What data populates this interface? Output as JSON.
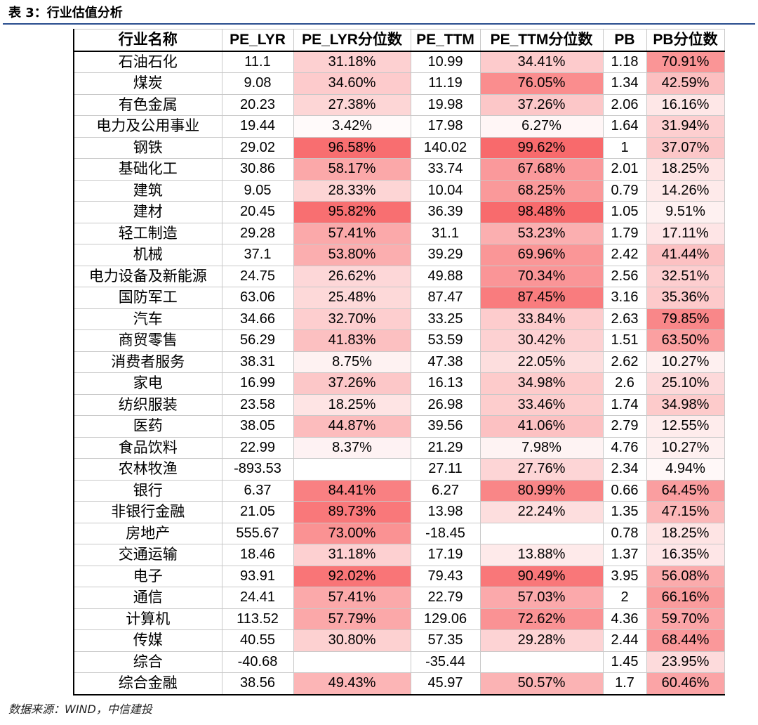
{
  "caption": "表 3：行业估值分析",
  "source": "数据来源：WIND，中信建投",
  "colors": {
    "heat_max": "#f8696b",
    "heat_min": "#ffffff",
    "rule": "#2a4e8f"
  },
  "headers": [
    "行业名称",
    "PE_LYR",
    "PE_LYR分位数",
    "PE_TTM",
    "PE_TTM分位数",
    "PB",
    "PB分位数"
  ],
  "rows": [
    {
      "name": "石油石化",
      "pe_lyr": "11.1",
      "pe_lyr_pct": "31.18%",
      "pe_ttm": "10.99",
      "pe_ttm_pct": "34.41%",
      "pb": "1.18",
      "pb_pct": "70.91%"
    },
    {
      "name": "煤炭",
      "pe_lyr": "9.08",
      "pe_lyr_pct": "34.60%",
      "pe_ttm": "11.19",
      "pe_ttm_pct": "76.05%",
      "pb": "1.34",
      "pb_pct": "42.59%"
    },
    {
      "name": "有色金属",
      "pe_lyr": "20.23",
      "pe_lyr_pct": "27.38%",
      "pe_ttm": "19.98",
      "pe_ttm_pct": "37.26%",
      "pb": "2.06",
      "pb_pct": "16.16%"
    },
    {
      "name": "电力及公用事业",
      "pe_lyr": "19.44",
      "pe_lyr_pct": "3.42%",
      "pe_ttm": "17.98",
      "pe_ttm_pct": "6.27%",
      "pb": "1.64",
      "pb_pct": "31.94%"
    },
    {
      "name": "钢铁",
      "pe_lyr": "29.02",
      "pe_lyr_pct": "96.58%",
      "pe_ttm": "140.02",
      "pe_ttm_pct": "99.62%",
      "pb": "1",
      "pb_pct": "37.07%"
    },
    {
      "name": "基础化工",
      "pe_lyr": "30.86",
      "pe_lyr_pct": "58.17%",
      "pe_ttm": "33.74",
      "pe_ttm_pct": "67.68%",
      "pb": "2.01",
      "pb_pct": "18.25%"
    },
    {
      "name": "建筑",
      "pe_lyr": "9.05",
      "pe_lyr_pct": "28.33%",
      "pe_ttm": "10.04",
      "pe_ttm_pct": "68.25%",
      "pb": "0.79",
      "pb_pct": "14.26%"
    },
    {
      "name": "建材",
      "pe_lyr": "20.45",
      "pe_lyr_pct": "95.82%",
      "pe_ttm": "36.39",
      "pe_ttm_pct": "98.48%",
      "pb": "1.05",
      "pb_pct": "9.51%"
    },
    {
      "name": "轻工制造",
      "pe_lyr": "29.28",
      "pe_lyr_pct": "57.41%",
      "pe_ttm": "31.1",
      "pe_ttm_pct": "53.23%",
      "pb": "1.79",
      "pb_pct": "17.11%"
    },
    {
      "name": "机械",
      "pe_lyr": "37.1",
      "pe_lyr_pct": "53.80%",
      "pe_ttm": "39.29",
      "pe_ttm_pct": "69.96%",
      "pb": "2.42",
      "pb_pct": "41.44%"
    },
    {
      "name": "电力设备及新能源",
      "pe_lyr": "24.75",
      "pe_lyr_pct": "26.62%",
      "pe_ttm": "49.88",
      "pe_ttm_pct": "70.34%",
      "pb": "2.56",
      "pb_pct": "32.51%"
    },
    {
      "name": "国防军工",
      "pe_lyr": "63.06",
      "pe_lyr_pct": "25.48%",
      "pe_ttm": "87.47",
      "pe_ttm_pct": "87.45%",
      "pb": "3.16",
      "pb_pct": "35.36%"
    },
    {
      "name": "汽车",
      "pe_lyr": "34.66",
      "pe_lyr_pct": "32.70%",
      "pe_ttm": "33.25",
      "pe_ttm_pct": "33.84%",
      "pb": "2.63",
      "pb_pct": "79.85%"
    },
    {
      "name": "商贸零售",
      "pe_lyr": "56.29",
      "pe_lyr_pct": "41.83%",
      "pe_ttm": "53.59",
      "pe_ttm_pct": "30.42%",
      "pb": "1.51",
      "pb_pct": "63.50%"
    },
    {
      "name": "消费者服务",
      "pe_lyr": "38.31",
      "pe_lyr_pct": "8.75%",
      "pe_ttm": "47.38",
      "pe_ttm_pct": "22.05%",
      "pb": "2.62",
      "pb_pct": "10.27%"
    },
    {
      "name": "家电",
      "pe_lyr": "16.99",
      "pe_lyr_pct": "37.26%",
      "pe_ttm": "16.13",
      "pe_ttm_pct": "34.98%",
      "pb": "2.6",
      "pb_pct": "25.10%"
    },
    {
      "name": "纺织服装",
      "pe_lyr": "23.58",
      "pe_lyr_pct": "18.25%",
      "pe_ttm": "26.98",
      "pe_ttm_pct": "33.46%",
      "pb": "1.74",
      "pb_pct": "34.98%"
    },
    {
      "name": "医药",
      "pe_lyr": "38.05",
      "pe_lyr_pct": "44.87%",
      "pe_ttm": "39.56",
      "pe_ttm_pct": "41.06%",
      "pb": "2.79",
      "pb_pct": "12.55%"
    },
    {
      "name": "食品饮料",
      "pe_lyr": "22.99",
      "pe_lyr_pct": "8.37%",
      "pe_ttm": "21.29",
      "pe_ttm_pct": "7.98%",
      "pb": "4.76",
      "pb_pct": "10.27%"
    },
    {
      "name": "农林牧渔",
      "pe_lyr": "-893.53",
      "pe_lyr_pct": "",
      "pe_ttm": "27.11",
      "pe_ttm_pct": "27.76%",
      "pb": "2.34",
      "pb_pct": "4.94%"
    },
    {
      "name": "银行",
      "pe_lyr": "6.37",
      "pe_lyr_pct": "84.41%",
      "pe_ttm": "6.27",
      "pe_ttm_pct": "80.99%",
      "pb": "0.66",
      "pb_pct": "64.45%"
    },
    {
      "name": "非银行金融",
      "pe_lyr": "21.05",
      "pe_lyr_pct": "89.73%",
      "pe_ttm": "13.98",
      "pe_ttm_pct": "22.24%",
      "pb": "1.35",
      "pb_pct": "47.15%"
    },
    {
      "name": "房地产",
      "pe_lyr": "555.67",
      "pe_lyr_pct": "73.00%",
      "pe_ttm": "-18.45",
      "pe_ttm_pct": "",
      "pb": "0.78",
      "pb_pct": "18.25%"
    },
    {
      "name": "交通运输",
      "pe_lyr": "18.46",
      "pe_lyr_pct": "31.18%",
      "pe_ttm": "17.19",
      "pe_ttm_pct": "13.88%",
      "pb": "1.37",
      "pb_pct": "16.35%"
    },
    {
      "name": "电子",
      "pe_lyr": "93.91",
      "pe_lyr_pct": "92.02%",
      "pe_ttm": "79.43",
      "pe_ttm_pct": "90.49%",
      "pb": "3.95",
      "pb_pct": "56.08%"
    },
    {
      "name": "通信",
      "pe_lyr": "24.41",
      "pe_lyr_pct": "57.41%",
      "pe_ttm": "22.79",
      "pe_ttm_pct": "57.03%",
      "pb": "2",
      "pb_pct": "66.16%"
    },
    {
      "name": "计算机",
      "pe_lyr": "113.52",
      "pe_lyr_pct": "57.79%",
      "pe_ttm": "129.06",
      "pe_ttm_pct": "72.62%",
      "pb": "4.36",
      "pb_pct": "59.70%"
    },
    {
      "name": "传媒",
      "pe_lyr": "40.55",
      "pe_lyr_pct": "30.80%",
      "pe_ttm": "57.35",
      "pe_ttm_pct": "29.28%",
      "pb": "2.44",
      "pb_pct": "68.44%"
    },
    {
      "name": "综合",
      "pe_lyr": "-40.68",
      "pe_lyr_pct": "",
      "pe_ttm": "-35.44",
      "pe_ttm_pct": "",
      "pb": "1.45",
      "pb_pct": "23.95%"
    },
    {
      "name": "综合金融",
      "pe_lyr": "38.56",
      "pe_lyr_pct": "49.43%",
      "pe_ttm": "45.97",
      "pe_ttm_pct": "50.57%",
      "pb": "1.7",
      "pb_pct": "60.46%"
    }
  ]
}
